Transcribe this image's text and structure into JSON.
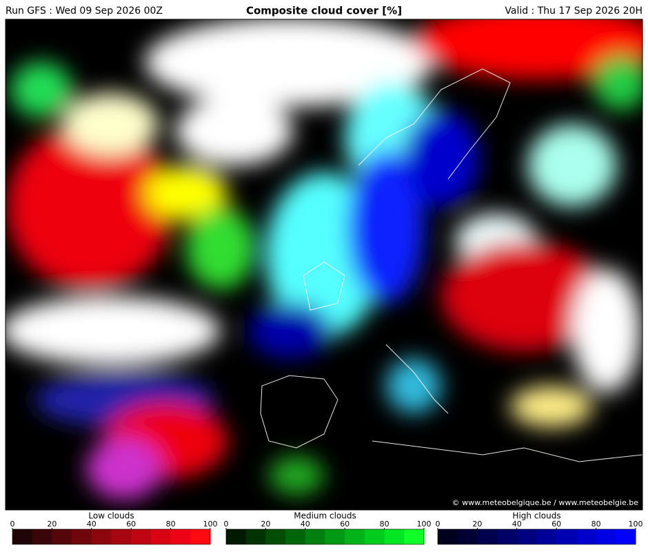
{
  "header": {
    "run": "Run GFS : Wed 09 Sep 2026 00Z",
    "title": "Composite cloud cover [%]",
    "valid": "Valid : Thu 17 Sep 2026 20H"
  },
  "credit": "© www.meteobelgique.be / www.meteobelgie.be",
  "legends": [
    {
      "title": "Low clouds",
      "ticks": [
        0,
        20,
        40,
        60,
        80,
        100
      ],
      "colors": [
        "#200406",
        "#3a0508",
        "#55060a",
        "#70060c",
        "#8c060e",
        "#a60610",
        "#c00512",
        "#d80414",
        "#ee0316",
        "#ff0a10"
      ]
    },
    {
      "title": "Medium clouds",
      "ticks": [
        0,
        20,
        40,
        60,
        80,
        100
      ],
      "colors": [
        "#001a00",
        "#003300",
        "#004d05",
        "#00660a",
        "#00800f",
        "#009914",
        "#00b319",
        "#00cc1e",
        "#00e623",
        "#10ff28"
      ]
    },
    {
      "title": "High clouds",
      "ticks": [
        0,
        20,
        40,
        60,
        80,
        100
      ],
      "colors": [
        "#00001f",
        "#000033",
        "#00004d",
        "#000066",
        "#000080",
        "#000099",
        "#0000b3",
        "#0000cc",
        "#0000e6",
        "#0000ff"
      ]
    }
  ]
}
